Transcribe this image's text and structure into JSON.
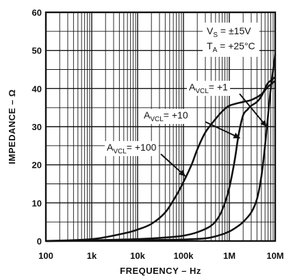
{
  "chart_data": {
    "type": "line",
    "xscale": "log",
    "xlabel": "FREQUENCY – Hz",
    "ylabel": "IMPEDANCE – Ω",
    "xlim": [
      100,
      10000000
    ],
    "ylim": [
      0,
      60
    ],
    "x_tick_labels": [
      "100",
      "1k",
      "10k",
      "100k",
      "1M",
      "10M"
    ],
    "y_tick_labels": [
      "0",
      "10",
      "20",
      "30",
      "40",
      "50",
      "60"
    ],
    "grid": true,
    "conditions": [
      {
        "main": "V",
        "sub": "S",
        "rest": " = ±15V"
      },
      {
        "main": "T",
        "sub": "A",
        "rest": " = +25°C"
      }
    ],
    "series": [
      {
        "name": "A_VCL = +1",
        "label": {
          "main": "A",
          "sub": "VCL",
          "rest": "= +1"
        },
        "x": [
          100,
          1000,
          10000,
          100000,
          300000,
          600000,
          1000000,
          1500000,
          2000000,
          3000000,
          4000000,
          5000000,
          6000000,
          7000000,
          8000000,
          10000000
        ],
        "y": [
          0,
          0.1,
          0.2,
          0.4,
          0.7,
          1.5,
          2.5,
          3.8,
          5.0,
          7.5,
          11.0,
          17.0,
          25.0,
          33.0,
          40.0,
          49.0
        ]
      },
      {
        "name": "A_VCL = +10",
        "label": {
          "main": "A",
          "sub": "VCL",
          "rest": "= +10"
        },
        "x": [
          100,
          1000,
          10000,
          50000,
          100000,
          200000,
          400000,
          600000,
          800000,
          1000000,
          1300000,
          1600000,
          2000000,
          2500000,
          3000000,
          4000000,
          5000000,
          6000000,
          7000000,
          10000000
        ],
        "y": [
          0,
          0.2,
          0.5,
          1.0,
          1.4,
          2.3,
          4.0,
          6.5,
          10.0,
          14.0,
          21.0,
          28.0,
          33.0,
          34.5,
          35.5,
          36.5,
          38.0,
          40.0,
          41.5,
          43.0
        ]
      },
      {
        "name": "A_VCL = +100",
        "label": {
          "main": "A",
          "sub": "VCL",
          "rest": "= +100"
        },
        "x": [
          100,
          1000,
          5000,
          10000,
          20000,
          40000,
          70000,
          100000,
          150000,
          200000,
          300000,
          500000,
          700000,
          1000000,
          2000000,
          3000000,
          5000000,
          7000000,
          10000000
        ],
        "y": [
          0,
          0.5,
          2.0,
          3.0,
          4.5,
          7.5,
          12.0,
          15.5,
          20.0,
          24.0,
          28.5,
          32.0,
          34.0,
          35.5,
          36.5,
          37.0,
          38.5,
          40.5,
          42.0
        ]
      }
    ]
  }
}
